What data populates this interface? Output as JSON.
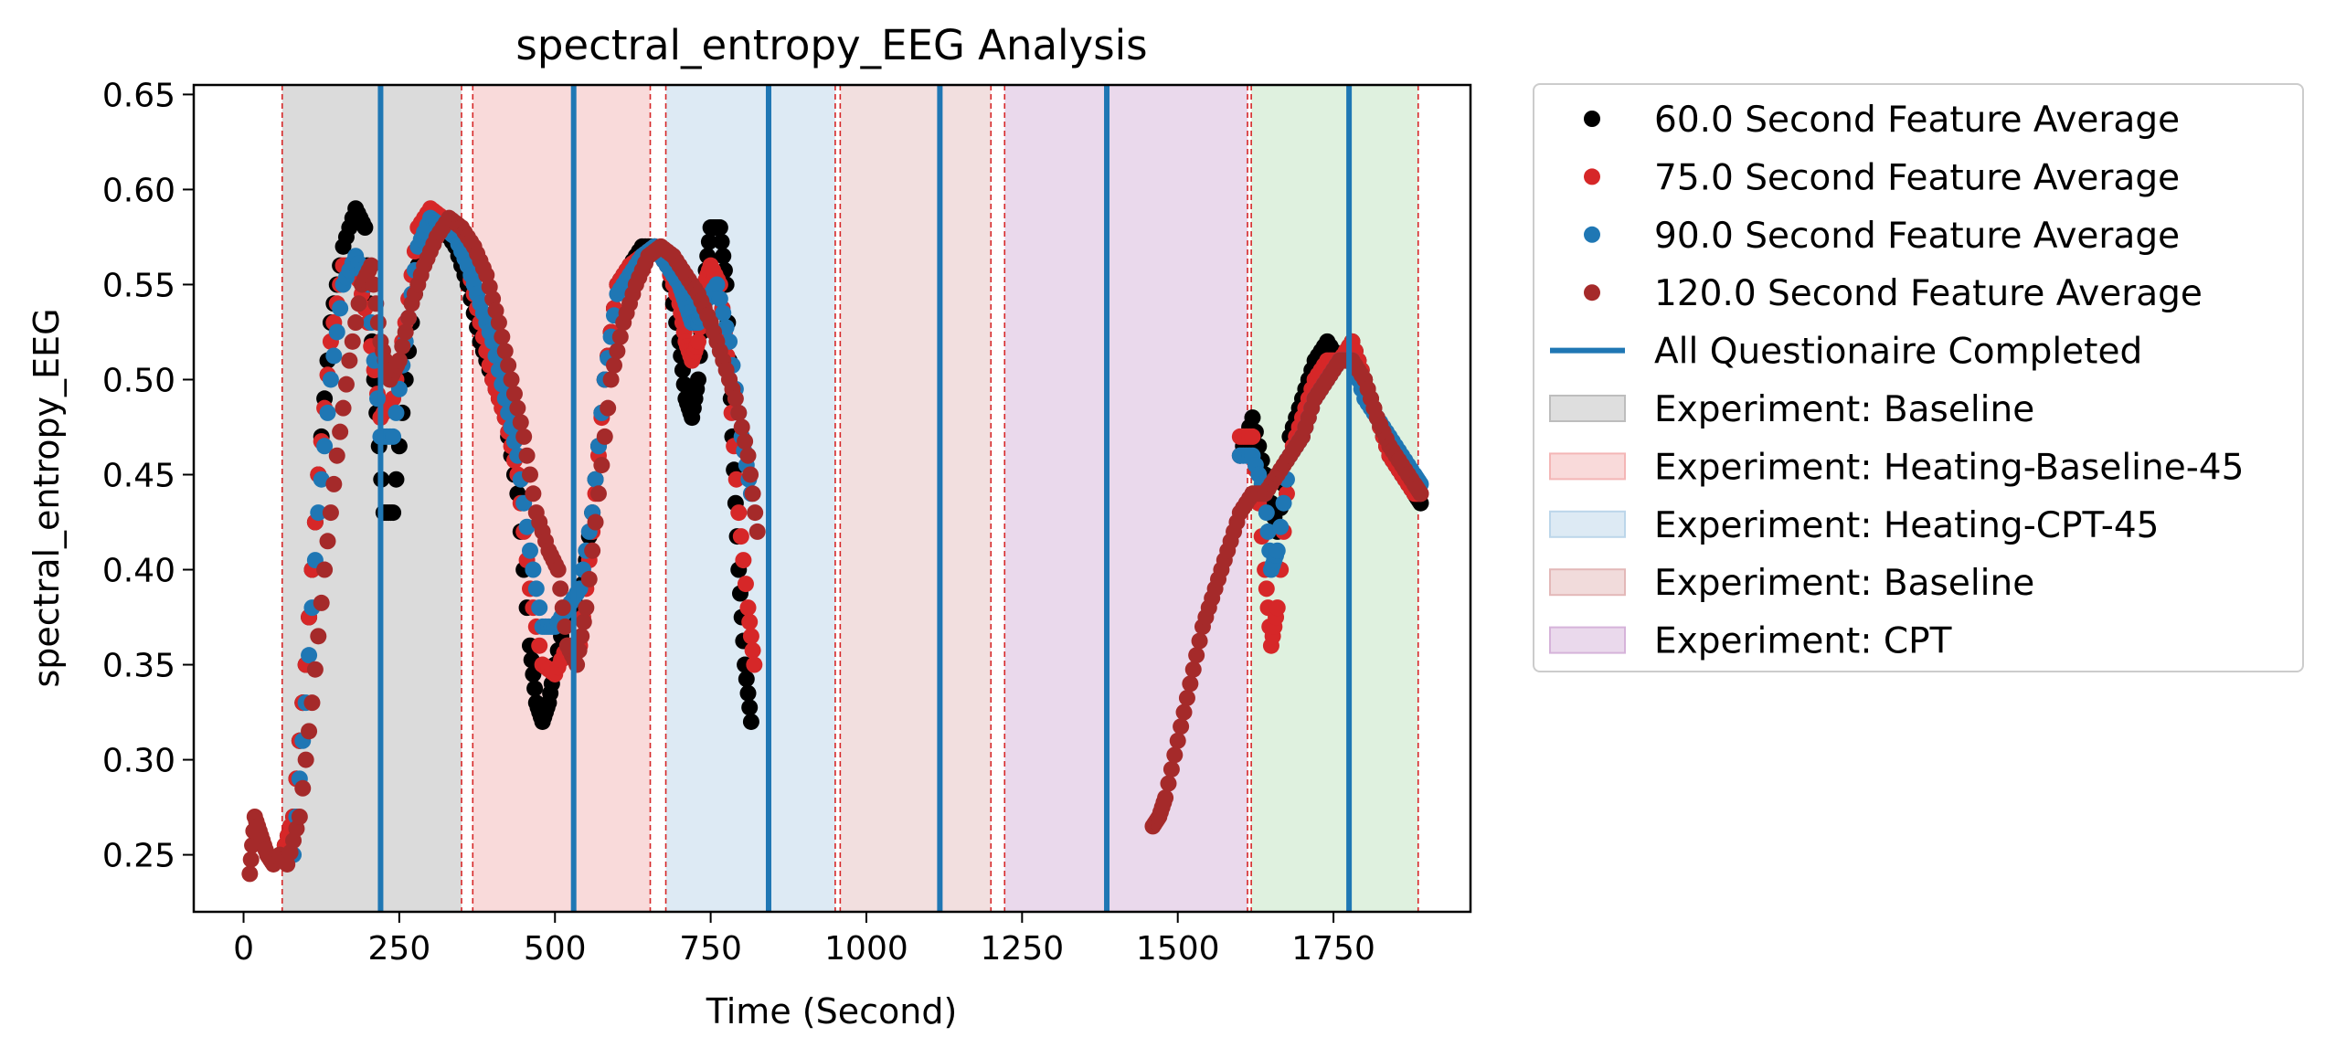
{
  "chart_data": {
    "type": "scatter",
    "title": "spectral_entropy_EEG Analysis",
    "xlabel": "Time (Second)",
    "ylabel": "spectral_entropy_EEG",
    "xlim": [
      -80,
      1970
    ],
    "ylim": [
      0.22,
      0.655
    ],
    "xticks": [
      0,
      250,
      500,
      750,
      1000,
      1250,
      1500,
      1750
    ],
    "yticks": [
      0.25,
      0.3,
      0.35,
      0.4,
      0.45,
      0.5,
      0.55,
      0.6,
      0.65
    ],
    "ytick_labels": [
      "0.25",
      "0.30",
      "0.35",
      "0.40",
      "0.45",
      "0.50",
      "0.55",
      "0.60",
      "0.65"
    ],
    "grid": false,
    "legend_position": "outside-right",
    "phases": [
      {
        "label": "Experiment: Baseline",
        "start": 62,
        "end": 350,
        "color": "#bdbdbd",
        "opacity": 0.55
      },
      {
        "label": "Experiment: Heating-Baseline-45",
        "start": 368,
        "end": 653,
        "color": "#f4b6b6",
        "opacity": 0.5
      },
      {
        "label": "Experiment: Heating-CPT-45",
        "start": 678,
        "end": 950,
        "color": "#bcd6ea",
        "opacity": 0.5
      },
      {
        "label": "Experiment: Baseline",
        "start": 958,
        "end": 1200,
        "color": "#e3b8b8",
        "opacity": 0.45
      },
      {
        "label": "Experiment: CPT",
        "start": 1222,
        "end": 1612,
        "color": "#d6b3da",
        "opacity": 0.5
      },
      {
        "label": "",
        "start": 1618,
        "end": 1886,
        "color": "#bfe3bf",
        "opacity": 0.5
      }
    ],
    "phase_boundaries": [
      62,
      350,
      368,
      653,
      678,
      950,
      958,
      1200,
      1222,
      1612,
      1618,
      1886
    ],
    "questionnaire_lines": [
      220,
      530,
      843,
      1118,
      1386,
      1775
    ],
    "series": [
      {
        "name": "60.0 Second Feature Average",
        "color": "#000000",
        "points": [
          [
            62,
            0.25
          ],
          [
            80,
            0.27
          ],
          [
            100,
            0.35
          ],
          [
            120,
            0.45
          ],
          [
            140,
            0.53
          ],
          [
            160,
            0.57
          ],
          [
            180,
            0.59
          ],
          [
            195,
            0.58
          ],
          [
            210,
            0.5
          ],
          [
            225,
            0.43
          ],
          [
            240,
            0.43
          ],
          [
            260,
            0.5
          ],
          [
            280,
            0.56
          ],
          [
            300,
            0.58
          ],
          [
            320,
            0.58
          ],
          [
            340,
            0.57
          ],
          [
            360,
            0.55
          ],
          [
            380,
            0.52
          ],
          [
            400,
            0.5
          ],
          [
            420,
            0.48
          ],
          [
            440,
            0.44
          ],
          [
            460,
            0.36
          ],
          [
            470,
            0.33
          ],
          [
            480,
            0.32
          ],
          [
            490,
            0.33
          ],
          [
            500,
            0.35
          ],
          [
            520,
            0.38
          ],
          [
            540,
            0.38
          ],
          [
            560,
            0.43
          ],
          [
            580,
            0.5
          ],
          [
            600,
            0.55
          ],
          [
            620,
            0.56
          ],
          [
            640,
            0.57
          ],
          [
            660,
            0.57
          ],
          [
            680,
            0.56
          ],
          [
            700,
            0.52
          ],
          [
            710,
            0.49
          ],
          [
            720,
            0.48
          ],
          [
            730,
            0.5
          ],
          [
            740,
            0.55
          ],
          [
            750,
            0.58
          ],
          [
            765,
            0.58
          ],
          [
            775,
            0.55
          ],
          [
            785,
            0.47
          ],
          [
            795,
            0.4
          ],
          [
            805,
            0.35
          ],
          [
            815,
            0.32
          ],
          [
            1600,
            0.46
          ],
          [
            1620,
            0.48
          ],
          [
            1640,
            0.45
          ],
          [
            1660,
            0.42
          ],
          [
            1680,
            0.47
          ],
          [
            1700,
            0.49
          ],
          [
            1720,
            0.51
          ],
          [
            1740,
            0.52
          ],
          [
            1760,
            0.51
          ],
          [
            1780,
            0.52
          ],
          [
            1800,
            0.5
          ],
          [
            1820,
            0.48
          ],
          [
            1840,
            0.46
          ],
          [
            1860,
            0.45
          ],
          [
            1880,
            0.44
          ],
          [
            1890,
            0.435
          ]
        ]
      },
      {
        "name": "75.0 Second Feature Average",
        "color": "#d62728",
        "points": [
          [
            62,
            0.25
          ],
          [
            80,
            0.27
          ],
          [
            100,
            0.35
          ],
          [
            120,
            0.45
          ],
          [
            140,
            0.52
          ],
          [
            160,
            0.56
          ],
          [
            180,
            0.56
          ],
          [
            200,
            0.53
          ],
          [
            220,
            0.48
          ],
          [
            240,
            0.49
          ],
          [
            260,
            0.53
          ],
          [
            280,
            0.58
          ],
          [
            300,
            0.59
          ],
          [
            320,
            0.585
          ],
          [
            340,
            0.58
          ],
          [
            360,
            0.56
          ],
          [
            380,
            0.53
          ],
          [
            400,
            0.5
          ],
          [
            420,
            0.48
          ],
          [
            440,
            0.45
          ],
          [
            460,
            0.39
          ],
          [
            480,
            0.35
          ],
          [
            500,
            0.345
          ],
          [
            520,
            0.36
          ],
          [
            540,
            0.36
          ],
          [
            560,
            0.42
          ],
          [
            580,
            0.5
          ],
          [
            600,
            0.55
          ],
          [
            620,
            0.56
          ],
          [
            640,
            0.565
          ],
          [
            660,
            0.57
          ],
          [
            680,
            0.56
          ],
          [
            700,
            0.54
          ],
          [
            710,
            0.52
          ],
          [
            720,
            0.51
          ],
          [
            730,
            0.52
          ],
          [
            740,
            0.55
          ],
          [
            750,
            0.56
          ],
          [
            765,
            0.55
          ],
          [
            780,
            0.5
          ],
          [
            795,
            0.43
          ],
          [
            810,
            0.38
          ],
          [
            820,
            0.35
          ],
          [
            1600,
            0.47
          ],
          [
            1620,
            0.47
          ],
          [
            1640,
            0.4
          ],
          [
            1650,
            0.36
          ],
          [
            1660,
            0.38
          ],
          [
            1680,
            0.46
          ],
          [
            1700,
            0.48
          ],
          [
            1720,
            0.5
          ],
          [
            1740,
            0.51
          ],
          [
            1760,
            0.51
          ],
          [
            1780,
            0.52
          ],
          [
            1800,
            0.5
          ],
          [
            1820,
            0.48
          ],
          [
            1840,
            0.46
          ],
          [
            1860,
            0.45
          ],
          [
            1880,
            0.44
          ],
          [
            1890,
            0.44
          ]
        ]
      },
      {
        "name": "90.0 Second Feature Average",
        "color": "#1f77b4",
        "points": [
          [
            80,
            0.25
          ],
          [
            100,
            0.33
          ],
          [
            120,
            0.43
          ],
          [
            140,
            0.5
          ],
          [
            160,
            0.55
          ],
          [
            180,
            0.565
          ],
          [
            200,
            0.55
          ],
          [
            220,
            0.47
          ],
          [
            240,
            0.47
          ],
          [
            260,
            0.52
          ],
          [
            280,
            0.57
          ],
          [
            300,
            0.585
          ],
          [
            320,
            0.58
          ],
          [
            340,
            0.575
          ],
          [
            360,
            0.56
          ],
          [
            380,
            0.54
          ],
          [
            400,
            0.52
          ],
          [
            420,
            0.49
          ],
          [
            440,
            0.46
          ],
          [
            460,
            0.41
          ],
          [
            480,
            0.37
          ],
          [
            500,
            0.37
          ],
          [
            520,
            0.38
          ],
          [
            540,
            0.39
          ],
          [
            560,
            0.43
          ],
          [
            580,
            0.5
          ],
          [
            600,
            0.545
          ],
          [
            620,
            0.555
          ],
          [
            640,
            0.565
          ],
          [
            660,
            0.57
          ],
          [
            680,
            0.56
          ],
          [
            700,
            0.55
          ],
          [
            710,
            0.54
          ],
          [
            720,
            0.53
          ],
          [
            730,
            0.53
          ],
          [
            740,
            0.54
          ],
          [
            760,
            0.55
          ],
          [
            780,
            0.52
          ],
          [
            800,
            0.47
          ],
          [
            815,
            0.44
          ],
          [
            1600,
            0.46
          ],
          [
            1620,
            0.46
          ],
          [
            1640,
            0.44
          ],
          [
            1650,
            0.4
          ],
          [
            1660,
            0.41
          ],
          [
            1680,
            0.46
          ],
          [
            1700,
            0.47
          ],
          [
            1720,
            0.49
          ],
          [
            1740,
            0.5
          ],
          [
            1760,
            0.51
          ],
          [
            1780,
            0.51
          ],
          [
            1800,
            0.49
          ],
          [
            1820,
            0.48
          ],
          [
            1840,
            0.47
          ],
          [
            1860,
            0.46
          ],
          [
            1880,
            0.45
          ],
          [
            1890,
            0.445
          ]
        ]
      },
      {
        "name": "120.0 Second Feature Average",
        "color": "#a52a2a",
        "points": [
          [
            10,
            0.24
          ],
          [
            18,
            0.27
          ],
          [
            28,
            0.26
          ],
          [
            38,
            0.25
          ],
          [
            48,
            0.245
          ],
          [
            58,
            0.25
          ],
          [
            70,
            0.245
          ],
          [
            90,
            0.27
          ],
          [
            110,
            0.33
          ],
          [
            130,
            0.4
          ],
          [
            150,
            0.46
          ],
          [
            170,
            0.51
          ],
          [
            190,
            0.55
          ],
          [
            205,
            0.56
          ],
          [
            220,
            0.52
          ],
          [
            235,
            0.5
          ],
          [
            250,
            0.51
          ],
          [
            270,
            0.54
          ],
          [
            290,
            0.56
          ],
          [
            310,
            0.575
          ],
          [
            330,
            0.585
          ],
          [
            350,
            0.58
          ],
          [
            370,
            0.57
          ],
          [
            390,
            0.555
          ],
          [
            410,
            0.53
          ],
          [
            430,
            0.5
          ],
          [
            450,
            0.47
          ],
          [
            470,
            0.43
          ],
          [
            490,
            0.41
          ],
          [
            505,
            0.4
          ],
          [
            520,
            0.36
          ],
          [
            535,
            0.35
          ],
          [
            550,
            0.38
          ],
          [
            570,
            0.44
          ],
          [
            590,
            0.5
          ],
          [
            610,
            0.53
          ],
          [
            630,
            0.55
          ],
          [
            650,
            0.565
          ],
          [
            670,
            0.57
          ],
          [
            690,
            0.565
          ],
          [
            710,
            0.555
          ],
          [
            730,
            0.545
          ],
          [
            750,
            0.53
          ],
          [
            770,
            0.51
          ],
          [
            790,
            0.49
          ],
          [
            810,
            0.46
          ],
          [
            825,
            0.42
          ],
          [
            1460,
            0.265
          ],
          [
            1470,
            0.27
          ],
          [
            1480,
            0.28
          ],
          [
            1500,
            0.31
          ],
          [
            1520,
            0.34
          ],
          [
            1540,
            0.37
          ],
          [
            1560,
            0.39
          ],
          [
            1580,
            0.41
          ],
          [
            1600,
            0.43
          ],
          [
            1620,
            0.44
          ],
          [
            1640,
            0.44
          ],
          [
            1660,
            0.45
          ],
          [
            1680,
            0.46
          ],
          [
            1700,
            0.47
          ],
          [
            1720,
            0.49
          ],
          [
            1740,
            0.5
          ],
          [
            1760,
            0.51
          ],
          [
            1780,
            0.51
          ],
          [
            1800,
            0.5
          ],
          [
            1820,
            0.48
          ],
          [
            1840,
            0.465
          ],
          [
            1860,
            0.455
          ],
          [
            1880,
            0.445
          ],
          [
            1890,
            0.44
          ]
        ]
      }
    ],
    "legend": {
      "items": [
        {
          "kind": "marker",
          "label": "60.0 Second Feature Average",
          "color": "#000000"
        },
        {
          "kind": "marker",
          "label": "75.0 Second Feature Average",
          "color": "#d62728"
        },
        {
          "kind": "marker",
          "label": "90.0 Second Feature Average",
          "color": "#1f77b4"
        },
        {
          "kind": "marker",
          "label": "120.0 Second Feature Average",
          "color": "#a52a2a"
        },
        {
          "kind": "line",
          "label": "All Questionaire Completed",
          "color": "#1f77b4"
        },
        {
          "kind": "patch",
          "label": "Experiment: Baseline",
          "color": "#bdbdbd"
        },
        {
          "kind": "patch",
          "label": "Experiment: Heating-Baseline-45",
          "color": "#f4b6b6"
        },
        {
          "kind": "patch",
          "label": "Experiment: Heating-CPT-45",
          "color": "#bcd6ea"
        },
        {
          "kind": "patch",
          "label": "Experiment: Baseline",
          "color": "#e3b8b8"
        },
        {
          "kind": "patch",
          "label": "Experiment: CPT",
          "color": "#d6b3da"
        }
      ]
    }
  }
}
